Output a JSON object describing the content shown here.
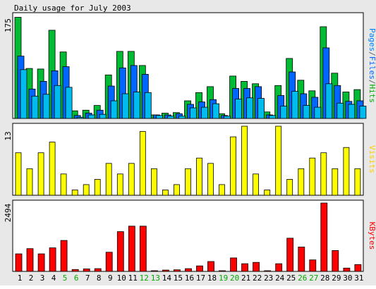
{
  "chart_data": [
    {
      "type": "bar",
      "title": "Daily usage for July 2003",
      "y_max_label": "175",
      "ylim": [
        0,
        175
      ],
      "legend": [
        {
          "label": "Pages",
          "color": "#0080ff"
        },
        {
          "label": "/",
          "color": "#666666"
        },
        {
          "label": "Files",
          "color": "#0066ff"
        },
        {
          "label": "/",
          "color": "#666666"
        },
        {
          "label": "Hits",
          "color": "#00aa00"
        }
      ],
      "categories": [
        "1",
        "2",
        "3",
        "4",
        "5",
        "6",
        "7",
        "8",
        "9",
        "10",
        "11",
        "12",
        "13",
        "14",
        "15",
        "16",
        "17",
        "18",
        "19",
        "20",
        "21",
        "22",
        "23",
        "24",
        "25",
        "26",
        "27",
        "28",
        "29",
        "30",
        "31"
      ],
      "series": [
        {
          "name": "Hits",
          "color": "#00bb33",
          "values": [
            172,
            85,
            84,
            150,
            113,
            13,
            14,
            22,
            74,
            114,
            114,
            90,
            6,
            9,
            10,
            30,
            44,
            54,
            8,
            72,
            63,
            59,
            11,
            56,
            102,
            65,
            47,
            156,
            77,
            45,
            49
          ]
        },
        {
          "name": "Files",
          "color": "#0066ff",
          "values": [
            106,
            50,
            63,
            81,
            88,
            5,
            9,
            14,
            55,
            86,
            90,
            75,
            6,
            6,
            8,
            24,
            28,
            32,
            5,
            51,
            51,
            54,
            6,
            39,
            79,
            42,
            36,
            120,
            56,
            29,
            30
          ]
        },
        {
          "name": "Pages",
          "color": "#00bbee",
          "values": [
            83,
            38,
            41,
            56,
            53,
            2,
            6,
            7,
            30,
            42,
            45,
            44,
            5,
            4,
            4,
            18,
            19,
            25,
            4,
            33,
            35,
            34,
            5,
            21,
            46,
            22,
            19,
            59,
            26,
            24,
            21
          ]
        }
      ]
    },
    {
      "type": "bar",
      "y_max_label": "13",
      "ylim": [
        0,
        13
      ],
      "legend": [
        {
          "label": "Visits",
          "color": "#ffcc00"
        }
      ],
      "categories": [
        "1",
        "2",
        "3",
        "4",
        "5",
        "6",
        "7",
        "8",
        "9",
        "10",
        "11",
        "12",
        "13",
        "14",
        "15",
        "16",
        "17",
        "18",
        "19",
        "20",
        "21",
        "22",
        "23",
        "24",
        "25",
        "26",
        "27",
        "28",
        "29",
        "30",
        "31"
      ],
      "series": [
        {
          "name": "Visits",
          "color": "#ffff00",
          "values": [
            8,
            5,
            8,
            10,
            4,
            1,
            2,
            3,
            6,
            4,
            6,
            12,
            5,
            1,
            2,
            5,
            7,
            6,
            2,
            11,
            13,
            4,
            1,
            13,
            3,
            5,
            7,
            8,
            5,
            9,
            5
          ]
        }
      ]
    },
    {
      "type": "bar",
      "y_max_label": "2494",
      "ylim": [
        0,
        2494
      ],
      "legend": [
        {
          "label": "KBytes",
          "color": "#ff0000"
        }
      ],
      "categories": [
        "1",
        "2",
        "3",
        "4",
        "5",
        "6",
        "7",
        "8",
        "9",
        "10",
        "11",
        "12",
        "13",
        "14",
        "15",
        "16",
        "17",
        "18",
        "19",
        "20",
        "21",
        "22",
        "23",
        "24",
        "25",
        "26",
        "27",
        "28",
        "29",
        "30",
        "31"
      ],
      "series": [
        {
          "name": "KBytes",
          "color": "#ff0000",
          "values": [
            640,
            830,
            640,
            860,
            1130,
            70,
            90,
            100,
            700,
            1450,
            1650,
            1650,
            20,
            50,
            60,
            100,
            200,
            360,
            20,
            490,
            280,
            330,
            20,
            280,
            1210,
            890,
            420,
            2494,
            760,
            120,
            250
          ]
        }
      ]
    }
  ],
  "x_axis": {
    "labels": [
      "1",
      "2",
      "3",
      "4",
      "5",
      "6",
      "7",
      "8",
      "9",
      "10",
      "11",
      "12",
      "13",
      "14",
      "15",
      "16",
      "17",
      "18",
      "19",
      "20",
      "21",
      "22",
      "23",
      "24",
      "25",
      "26",
      "27",
      "28",
      "29",
      "30",
      "31"
    ],
    "weekend": [
      false,
      false,
      false,
      false,
      true,
      true,
      false,
      false,
      false,
      false,
      false,
      true,
      true,
      false,
      false,
      false,
      false,
      false,
      true,
      true,
      false,
      false,
      false,
      false,
      false,
      true,
      true,
      false,
      false,
      false,
      false
    ],
    "weekday_color": "#000000",
    "weekend_color": "#00aa00"
  }
}
